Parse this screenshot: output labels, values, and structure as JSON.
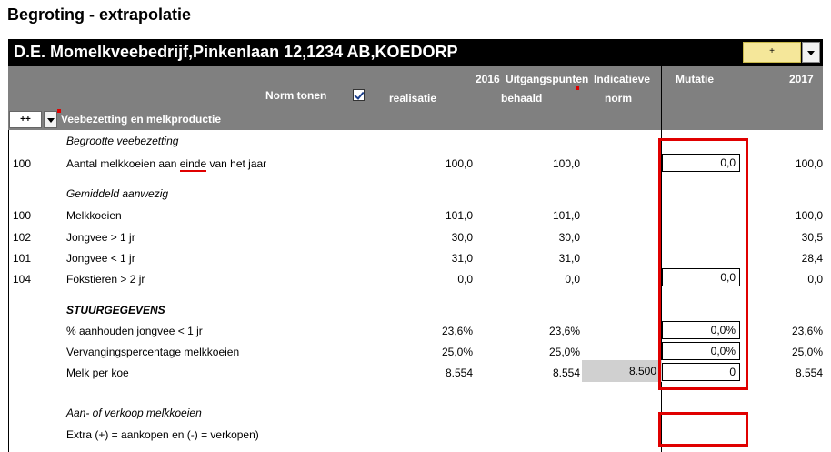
{
  "page": {
    "title": "Begroting - extrapolatie"
  },
  "farm": {
    "name": "D.E. Momelkveebedrijf,Pinkenlaan 12,1234 AB,KOEDORP",
    "plus_label": "+"
  },
  "header": {
    "col1_line1": "2016",
    "col2_line1": "Uitgangspunten",
    "col3_line1": "Indicatieve",
    "col4_line1": "Mutatie",
    "col5_line1": "2017",
    "norm_tonen": "Norm tonen",
    "col1_line2": "realisatie",
    "col2_line2": "behaald",
    "col3_line2": "norm",
    "section_label": "Veebezetting en melkproductie",
    "expand_label": "++"
  },
  "rows": {
    "begrote_heading": "Begrootte veebezetting",
    "r1": {
      "code": "100",
      "label_pre": "Aantal melkkoeien aan ",
      "label_emph": "einde",
      "label_post": " van het jaar",
      "v2016": "100,0",
      "vbehaald": "100,0",
      "mutatie": "0,0",
      "v2017": "100,0"
    },
    "gem_heading": "Gemiddeld aanwezig",
    "r2": {
      "code": "100",
      "label": "Melkkoeien",
      "v2016": "101,0",
      "vbehaald": "101,0",
      "v2017": "100,0"
    },
    "r3": {
      "code": "102",
      "label": "Jongvee > 1 jr",
      "v2016": "30,0",
      "vbehaald": "30,0",
      "v2017": "30,5"
    },
    "r4": {
      "code": "101",
      "label": "Jongvee < 1 jr",
      "v2016": "31,0",
      "vbehaald": "31,0",
      "v2017": "28,4"
    },
    "r5": {
      "code": "104",
      "label": "Fokstieren > 2 jr",
      "v2016": "0,0",
      "vbehaald": "0,0",
      "mutatie": "0,0",
      "v2017": "0,0"
    },
    "stuur_heading": "STUURGEGEVENS",
    "r6": {
      "label": "% aanhouden jongvee < 1 jr",
      "v2016": "23,6%",
      "vbehaald": "23,6%",
      "mutatie": "0,0%",
      "v2017": "23,6%"
    },
    "r7": {
      "label": "Vervangingspercentage melkkoeien",
      "v2016": "25,0%",
      "vbehaald": "25,0%",
      "mutatie": "0,0%",
      "v2017": "25,0%"
    },
    "r8": {
      "label": "Melk per koe",
      "v2016": "8.554",
      "vbehaald": "8.554",
      "norm": "8.500",
      "mutatie": "0",
      "v2017": "8.554"
    },
    "aan_heading": "Aan- of verkoop melkkoeien",
    "r9": {
      "label": "Extra (+) = aankopen en  (-)  = verkopen)"
    }
  },
  "colors": {
    "header_grey": "#808080",
    "highlight_red": "#e00000",
    "norm_grey": "#d0d0d0",
    "plus_button": "#f5e79a"
  },
  "icons": {
    "checkbox": "checkbox-checked-icon",
    "dropdown": "chevron-down-icon"
  }
}
